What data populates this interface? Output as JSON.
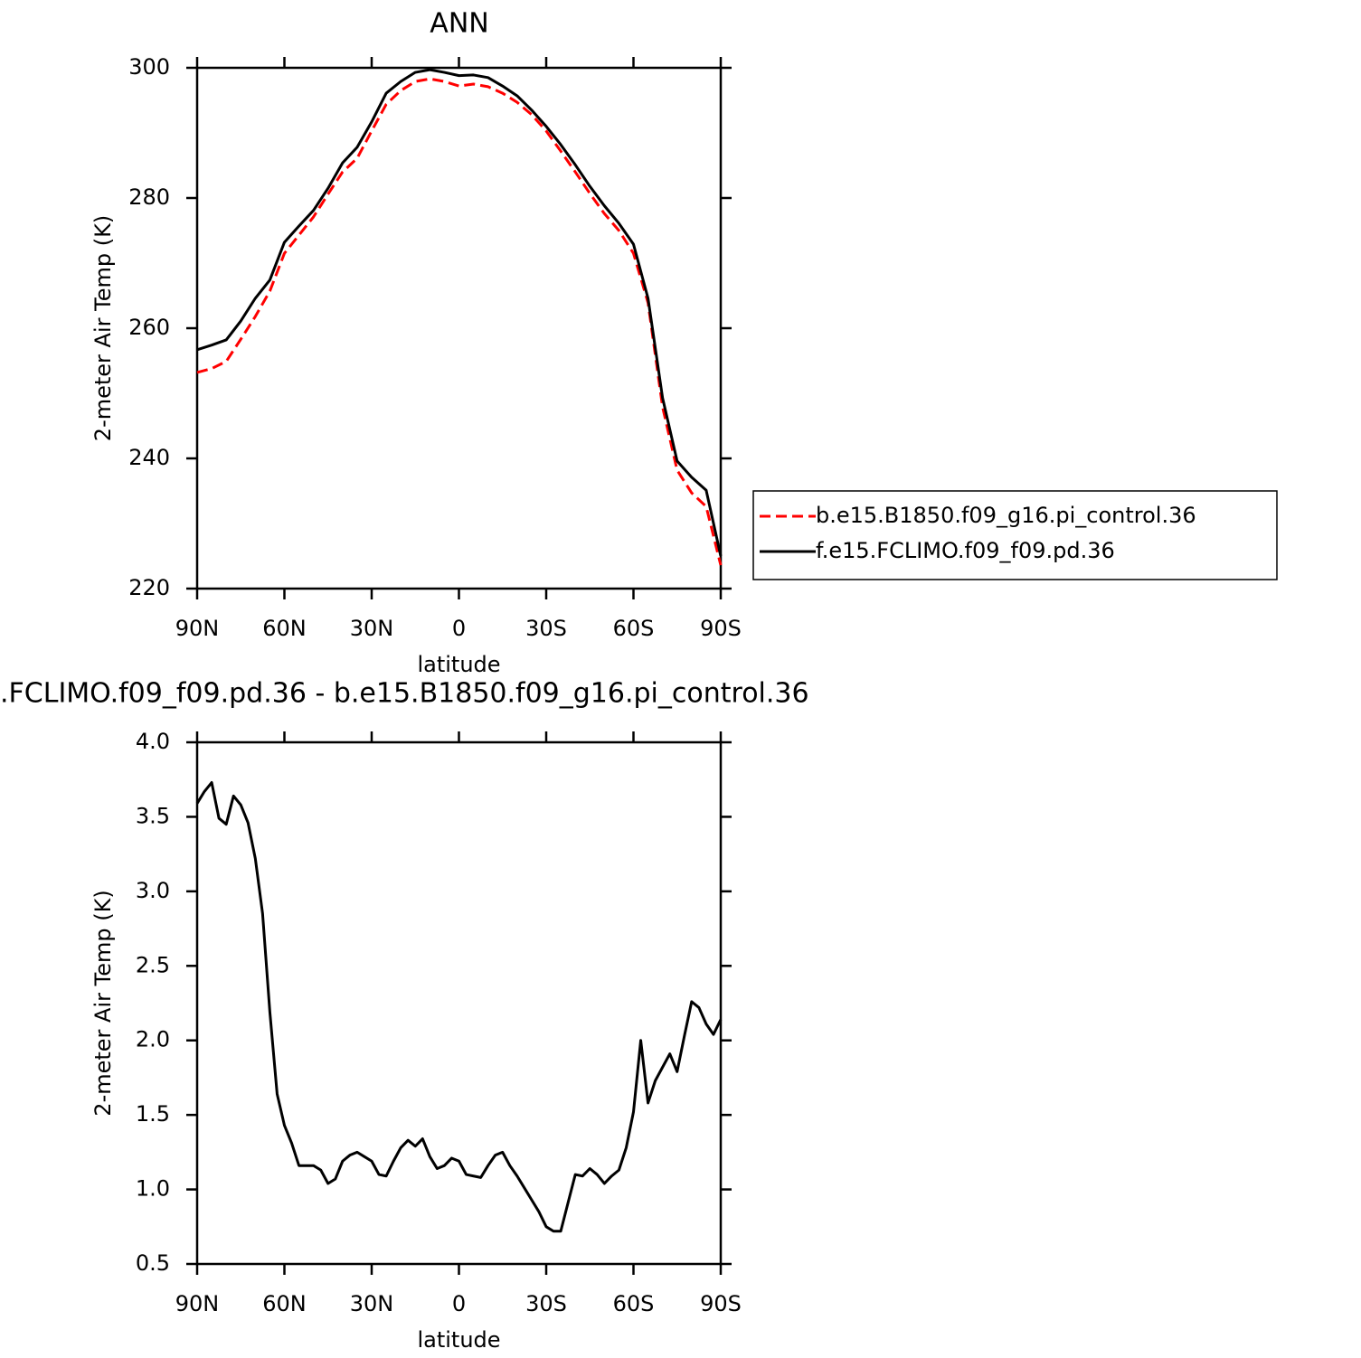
{
  "chart_data": [
    {
      "type": "line",
      "title": "ANN",
      "xlabel": "latitude",
      "ylabel": "2-meter Air Temp (K)",
      "x": [
        90,
        85,
        80,
        75,
        70,
        65,
        60,
        55,
        50,
        45,
        40,
        35,
        30,
        25,
        20,
        15,
        10,
        5,
        0,
        -5,
        -10,
        -15,
        -20,
        -25,
        -30,
        -35,
        -40,
        -45,
        -50,
        -55,
        -60,
        -65,
        -70,
        -75,
        -80,
        -85,
        -90
      ],
      "xlim": [
        90,
        -90
      ],
      "xticks": [
        {
          "value": 90,
          "label": "90N"
        },
        {
          "value": 60,
          "label": "60N"
        },
        {
          "value": 30,
          "label": "30N"
        },
        0,
        {
          "value": -30,
          "label": "30S"
        },
        {
          "value": -60,
          "label": "60S"
        },
        {
          "value": -90,
          "label": "90S"
        }
      ],
      "ylim": [
        220,
        300
      ],
      "yticks": [
        220,
        240,
        260,
        280,
        300
      ],
      "legend": "right",
      "series": [
        {
          "name": "b.e15.B1850.f09_g16.pi_control.36",
          "color": "#ff0000",
          "line_style": "dashed",
          "values": [
            253.2,
            253.8,
            254.9,
            258.3,
            261.8,
            265.7,
            271.5,
            274.3,
            277.1,
            280.6,
            284.0,
            286.1,
            290.3,
            294.4,
            296.5,
            297.9,
            298.3,
            297.9,
            297.2,
            297.5,
            297.1,
            296.1,
            294.7,
            292.8,
            290.3,
            287.2,
            284.0,
            280.7,
            277.6,
            275.0,
            271.5,
            263.9,
            247.9,
            238.2,
            234.7,
            232.6,
            223.6
          ]
        },
        {
          "name": "f.e15.FCLIMO.f09_f09.pd.36",
          "color": "#000000",
          "line_style": "solid",
          "values": [
            256.7,
            257.4,
            258.2,
            261.1,
            264.6,
            267.4,
            273.2,
            275.7,
            278.1,
            281.5,
            285.4,
            287.8,
            291.7,
            296.1,
            297.9,
            299.3,
            299.7,
            299.3,
            298.8,
            298.9,
            298.5,
            297.2,
            295.7,
            293.5,
            291.0,
            288.2,
            285.1,
            281.8,
            278.8,
            276.1,
            272.9,
            264.6,
            249.3,
            239.6,
            237.1,
            235.1,
            225.0
          ]
        }
      ]
    },
    {
      "type": "line",
      "title": ".FCLIMO.f09_f09.pd.36 - b.e15.B1850.f09_g16.pi_control.36",
      "xlabel": "latitude",
      "ylabel": "2-meter Air Temp (K)",
      "x": [
        90,
        87.5,
        85,
        82.5,
        80,
        77.5,
        75,
        72.5,
        70,
        67.5,
        65,
        62.5,
        60,
        57.5,
        55,
        52.5,
        50,
        47.5,
        45,
        42.5,
        40,
        37.5,
        35,
        32.5,
        30,
        27.5,
        25,
        22.5,
        20,
        17.5,
        15,
        12.5,
        10,
        7.5,
        5,
        2.5,
        0,
        -2.5,
        -5,
        -7.5,
        -10,
        -12.5,
        -15,
        -17.5,
        -20,
        -22.5,
        -25,
        -27.5,
        -30,
        -32.5,
        -35,
        -37.5,
        -40,
        -42.5,
        -45,
        -47.5,
        -50,
        -52.5,
        -55,
        -57.5,
        -60,
        -62.5,
        -65,
        -67.5,
        -70,
        -72.5,
        -75,
        -77.5,
        -80,
        -82.5,
        -85,
        -87.5,
        -90
      ],
      "xlim": [
        90,
        -90
      ],
      "xticks": [
        {
          "value": 90,
          "label": "90N"
        },
        {
          "value": 60,
          "label": "60N"
        },
        {
          "value": 30,
          "label": "30N"
        },
        0,
        {
          "value": -30,
          "label": "30S"
        },
        {
          "value": -60,
          "label": "60S"
        },
        {
          "value": -90,
          "label": "90S"
        }
      ],
      "ylim": [
        0.5,
        4.0
      ],
      "yticks": [
        0.5,
        {
          "value": 1.0,
          "label": "1.0"
        },
        1.5,
        {
          "value": 2.0,
          "label": "2.0"
        },
        2.5,
        {
          "value": 3.0,
          "label": "3.0"
        },
        3.5,
        {
          "value": 4.0,
          "label": "4.0"
        }
      ],
      "color": "#000000",
      "values": [
        3.59,
        3.67,
        3.73,
        3.49,
        3.45,
        3.64,
        3.58,
        3.46,
        3.22,
        2.85,
        2.19,
        1.64,
        1.43,
        1.31,
        1.16,
        1.16,
        1.16,
        1.13,
        1.04,
        1.07,
        1.19,
        1.23,
        1.25,
        1.22,
        1.19,
        1.1,
        1.09,
        1.19,
        1.28,
        1.33,
        1.29,
        1.34,
        1.22,
        1.14,
        1.16,
        1.21,
        1.19,
        1.1,
        1.09,
        1.08,
        1.16,
        1.23,
        1.25,
        1.16,
        1.09,
        1.01,
        0.93,
        0.85,
        0.75,
        0.72,
        0.72,
        0.91,
        1.1,
        1.09,
        1.14,
        1.1,
        1.04,
        1.09,
        1.13,
        1.28,
        1.52,
        2.0,
        1.58,
        1.73,
        1.82,
        1.91,
        1.79,
        2.03,
        2.26,
        2.22,
        2.11,
        2.04,
        2.14
      ]
    }
  ]
}
